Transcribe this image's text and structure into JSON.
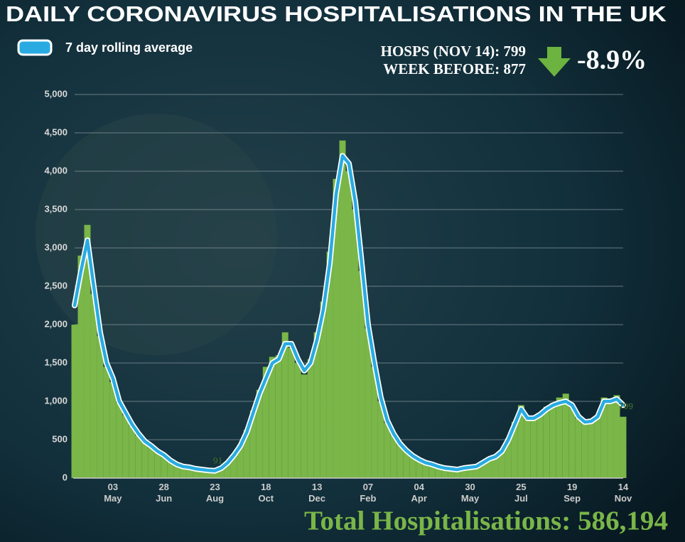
{
  "chart_data": {
    "type": "bar-line",
    "title": "DAILY CORONAVIRUS HOSPITALISATIONS IN THE UK",
    "stats": [
      "HOSPS (NOV 14): 799",
      "WEEK BEFORE: 877"
    ],
    "change": "-8.9%",
    "total": "Total Hospitalisations: 586,194",
    "categories": [
      null,
      null,
      null,
      null,
      null,
      null,
      "03 May",
      null,
      null,
      null,
      null,
      null,
      null,
      null,
      "28 Jun",
      null,
      null,
      null,
      null,
      null,
      null,
      null,
      "23 Aug",
      null,
      null,
      null,
      null,
      null,
      null,
      null,
      "18 Oct",
      null,
      null,
      null,
      null,
      null,
      null,
      null,
      "13 Dec",
      null,
      null,
      null,
      null,
      null,
      null,
      null,
      "07 Feb",
      null,
      null,
      null,
      null,
      null,
      null,
      null,
      "04 Apr",
      null,
      null,
      null,
      null,
      null,
      null,
      null,
      "30 May",
      null,
      null,
      null,
      null,
      null,
      null,
      null,
      "25 Jul",
      null,
      null,
      null,
      null,
      null,
      null,
      null,
      "19 Sep",
      null,
      null,
      null,
      null,
      null,
      null,
      null,
      "14 Nov"
    ],
    "series": [
      {
        "color": "#7ab648",
        "values": [
          2000,
          2900,
          3300,
          2400,
          1850,
          1450,
          1250,
          980,
          820,
          680,
          560,
          470,
          400,
          340,
          290,
          220,
          175,
          150,
          135,
          118,
          105,
          98,
          91,
          140,
          210,
          310,
          440,
          630,
          880,
          1150,
          1450,
          1580,
          1600,
          1900,
          1700,
          1500,
          1350,
          1550,
          1900,
          2300,
          2950,
          3900,
          4400,
          4000,
          3500,
          2700,
          1950,
          1450,
          1000,
          720,
          560,
          430,
          350,
          280,
          230,
          195,
          170,
          145,
          125,
          115,
          105,
          125,
          135,
          150,
          195,
          245,
          275,
          345,
          520,
          730,
          950,
          760,
          790,
          850,
          930,
          980,
          1050,
          1100,
          930,
          780,
          720,
          750,
          820,
          1050,
          1020,
          1080,
          799
        ],
        "value_labels": [
          null,
          null,
          null,
          null,
          null,
          null,
          null,
          null,
          null,
          null,
          null,
          null,
          null,
          null,
          null,
          null,
          null,
          null,
          null,
          null,
          null,
          null,
          "91",
          null,
          null,
          null,
          null,
          null,
          null,
          null,
          null,
          null,
          null,
          null,
          null,
          null,
          null,
          null,
          null,
          null,
          null,
          null,
          null,
          null,
          null,
          null,
          null,
          null,
          null,
          null,
          null,
          null,
          null,
          null,
          null,
          null,
          null,
          null,
          null,
          null,
          null,
          null,
          null,
          null,
          null,
          null,
          null,
          null,
          null,
          null,
          null,
          null,
          null,
          null,
          null,
          null,
          null,
          null,
          null,
          null,
          null,
          null,
          null,
          null,
          null,
          null,
          "799"
        ]
      },
      {
        "name": "7 day rolling average",
        "color": "#29abe2",
        "values": [
          2250,
          2700,
          3100,
          2500,
          1900,
          1500,
          1300,
          1000,
          850,
          700,
          580,
          480,
          420,
          350,
          300,
          230,
          180,
          150,
          140,
          120,
          110,
          100,
          95,
          130,
          200,
          300,
          420,
          600,
          850,
          1100,
          1300,
          1500,
          1550,
          1750,
          1750,
          1550,
          1400,
          1500,
          1800,
          2200,
          2800,
          3700,
          4200,
          4100,
          3600,
          2800,
          2000,
          1500,
          1050,
          750,
          580,
          450,
          360,
          290,
          240,
          200,
          180,
          150,
          130,
          120,
          110,
          130,
          140,
          150,
          200,
          250,
          280,
          350,
          500,
          700,
          900,
          780,
          780,
          830,
          900,
          950,
          980,
          1000,
          950,
          800,
          730,
          740,
          800,
          1000,
          1000,
          1030,
          950
        ]
      }
    ],
    "ylim": [
      0,
      5000
    ],
    "yticks": [
      0,
      500,
      {
        "value": 1000,
        "label": "1,000"
      },
      {
        "value": 1500,
        "label": "1,500"
      },
      {
        "value": 2000,
        "label": "2,000"
      },
      {
        "value": 2500,
        "label": "2,500"
      },
      {
        "value": 3000,
        "label": "3,000"
      },
      {
        "value": 3500,
        "label": "3,500"
      },
      {
        "value": 4000,
        "label": "4,000"
      },
      {
        "value": 4500,
        "label": "4,500"
      },
      {
        "value": 5000,
        "label": "5,000"
      }
    ],
    "grid": true
  }
}
